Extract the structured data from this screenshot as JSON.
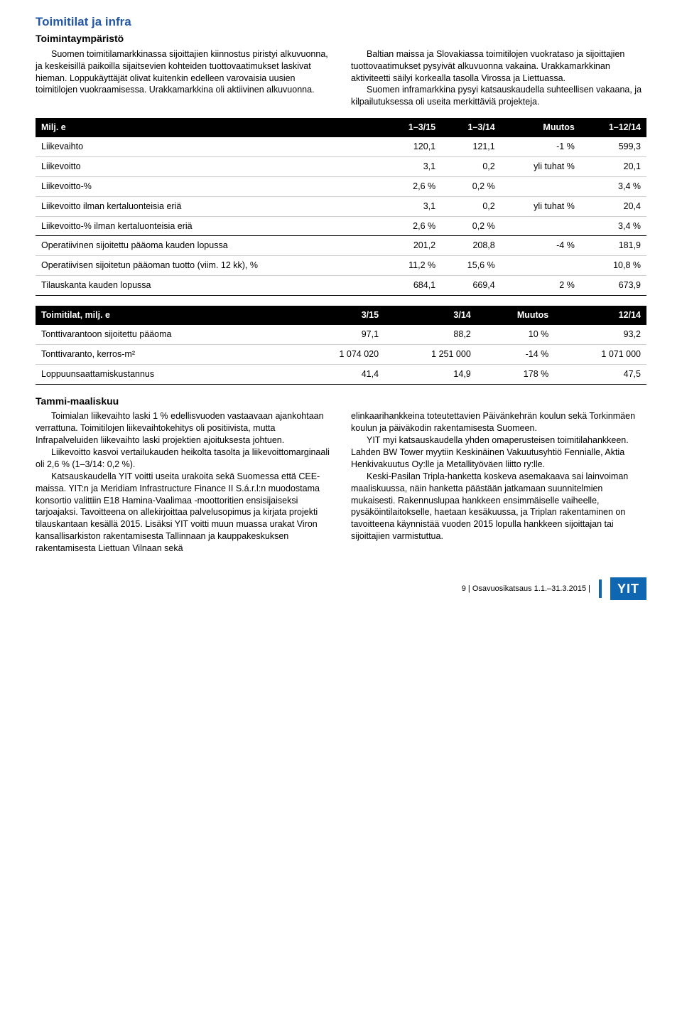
{
  "header": {
    "title": "Toimitilat ja infra",
    "subtitle": "Toimintaympäristö"
  },
  "intro": {
    "left_p1": "Suomen toimitilamarkkinassa sijoittajien kiinnostus piristyi alkuvuonna, ja keskeisillä paikoilla sijaitsevien kohteiden tuottovaatimukset laskivat hieman. Loppukäyttäjät olivat kuitenkin edelleen varovaisia uusien toimitilojen vuokraamisessa. Urakkamarkkina oli aktiivinen alkuvuonna.",
    "right_p1": "Baltian maissa ja Slovakiassa toimitilojen vuokrataso ja sijoittajien tuottovaatimukset pysyivät alkuvuonna vakaina. Urakkamarkkinan aktiviteetti säilyi korkealla tasolla Virossa ja Liettuassa.",
    "right_p2": "Suomen inframarkkina pysyi katsauskaudella suhteellisen vakaana, ja kilpailutuksessa oli useita merkittäviä projekteja."
  },
  "table1": {
    "headers": [
      "Milj. e",
      "1–3/15",
      "1–3/14",
      "Muutos",
      "1–12/14"
    ],
    "rows": [
      [
        "Liikevaihto",
        "120,1",
        "121,1",
        "-1 %",
        "599,3"
      ],
      [
        "Liikevoitto",
        "3,1",
        "0,2",
        "yli tuhat %",
        "20,1"
      ],
      [
        "Liikevoitto-%",
        "2,6 %",
        "0,2 %",
        "",
        "3,4 %"
      ],
      [
        "Liikevoitto ilman kertaluonteisia eriä",
        "3,1",
        "0,2",
        "yli tuhat %",
        "20,4"
      ],
      [
        "Liikevoitto-% ilman kertaluonteisia eriä",
        "2,6 %",
        "0,2 %",
        "",
        "3,4 %"
      ],
      [
        "Operatiivinen sijoitettu pääoma kauden lopussa",
        "201,2",
        "208,8",
        "-4 %",
        "181,9"
      ],
      [
        "Operatiivisen sijoitetun pääoman tuotto (viim. 12 kk), %",
        "11,2 %",
        "15,6 %",
        "",
        "10,8 %"
      ],
      [
        "Tilauskanta kauden lopussa",
        "684,1",
        "669,4",
        "2 %",
        "673,9"
      ]
    ],
    "section_breaks": [
      4,
      7
    ]
  },
  "table2": {
    "headers": [
      "Toimitilat, milj. e",
      "3/15",
      "3/14",
      "Muutos",
      "12/14"
    ],
    "rows": [
      [
        "Tonttivarantoon sijoitettu pääoma",
        "97,1",
        "88,2",
        "10 %",
        "93,2"
      ],
      [
        "Tonttivaranto, kerros-m²",
        "1 074 020",
        "1 251 000",
        "-14 %",
        "1 071 000"
      ],
      [
        "Loppuunsaattamiskustannus",
        "41,4",
        "14,9",
        "178 %",
        "47,5"
      ]
    ],
    "section_breaks": [
      2
    ]
  },
  "body_section": {
    "heading": "Tammi-maaliskuu",
    "left_p1": "Toimialan liikevaihto laski 1 % edellisvuoden vastaavaan ajankohtaan verrattuna. Toimitilojen liikevaihtokehitys oli positiivista, mutta Infrapalveluiden liikevaihto laski projektien ajoituksesta johtuen.",
    "left_p2": "Liikevoitto kasvoi vertailukauden heikolta tasolta ja liikevoittomarginaali oli 2,6 % (1–3/14: 0,2 %).",
    "left_p3": "Katsauskaudella YIT voitti useita urakoita sekä Suomessa että CEE-maissa. YIT:n ja Meridiam Infrastructure Finance II S.á.r.l:n muodostama konsortio valittiin E18 Hamina-Vaalimaa -moottoritien ensisijaiseksi tarjoajaksi. Tavoitteena on allekirjoittaa palvelusopimus ja kirjata projekti tilauskantaan kesällä 2015. Lisäksi YIT voitti muun muassa urakat Viron kansallisarkiston rakentamisesta Tallinnaan ja kauppakeskuksen rakentamisesta Liettuan Vilnaan sekä",
    "right_p1": "elinkaarihankkeina toteutettavien Päivänkehrän koulun sekä Torkinmäen koulun ja päiväkodin rakentamisesta Suomeen.",
    "right_p2": "YIT myi katsauskaudella yhden omaperusteisen toimitilahankkeen. Lahden BW Tower myytiin Keskinäinen Vakuutusyhtiö Fennialle, Aktia Henkivakuutus Oy:lle ja Metallityöväen liitto ry:lle.",
    "right_p3": "Keski-Pasilan Tripla-hanketta koskeva asemakaava sai lainvoiman maaliskuussa, näin hanketta päästään jatkamaan suunnitelmien mukaisesti. Rakennuslupaa hankkeen ensimmäiselle vaiheelle, pysäköintilaitokselle, haetaan kesäkuussa, ja Triplan rakentaminen on tavoitteena käynnistää vuoden 2015 lopulla hankkeen sijoittajan tai sijoittajien varmistuttua."
  },
  "footer": {
    "text": "9 |  Osavuosikatsaus 1.1.–31.3.2015  |",
    "logo": "YIT"
  },
  "colors": {
    "title": "#2457a4",
    "header_bg": "#000000",
    "header_fg": "#ffffff",
    "row_border": "#cfcfcf",
    "logo_bg": "#0f67b1"
  },
  "typography": {
    "title_fontsize": 17,
    "subtitle_fontsize": 14,
    "body_fontsize": 12.5,
    "footer_fontsize": 11
  }
}
